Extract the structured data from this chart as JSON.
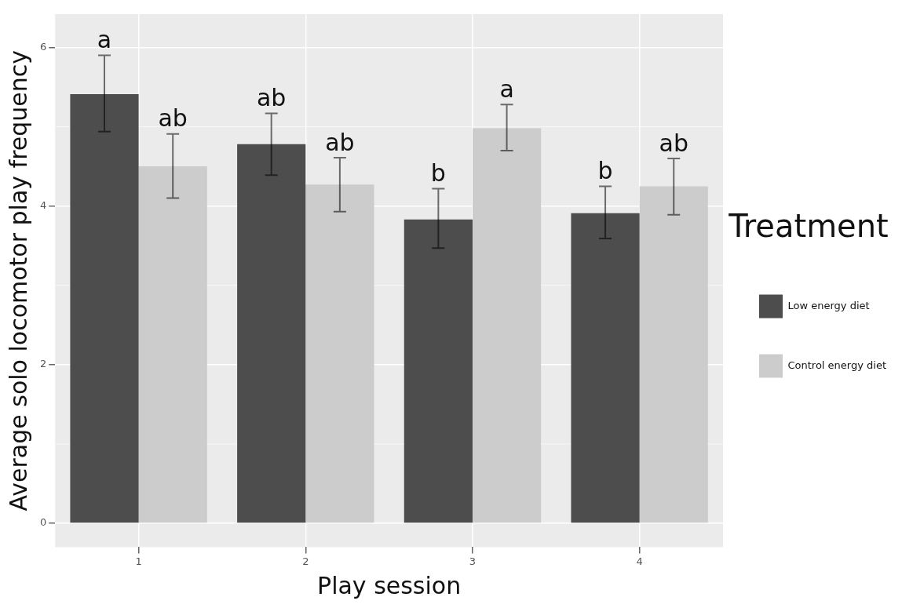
{
  "chart_data": {
    "type": "bar",
    "xlabel": "Play session",
    "ylabel": "Average solo locomotor play frequency",
    "legend_title": "Treatment",
    "categories": [
      "1",
      "2",
      "3",
      "4"
    ],
    "series": [
      {
        "name": "Low energy diet",
        "color": "#4d4d4d",
        "values": [
          5.41,
          4.78,
          3.83,
          3.91
        ],
        "errors": [
          [
            4.94,
            5.9
          ],
          [
            4.39,
            5.17
          ],
          [
            3.47,
            4.22
          ],
          [
            3.59,
            4.25
          ]
        ]
      },
      {
        "name": "Control energy diet",
        "color": "#cccccc",
        "values": [
          4.5,
          4.27,
          4.98,
          4.25
        ],
        "errors": [
          [
            4.1,
            4.91
          ],
          [
            3.93,
            4.61
          ],
          [
            4.7,
            5.28
          ],
          [
            3.89,
            4.6
          ]
        ]
      }
    ],
    "ylim": [
      -0.3,
      6.42
    ],
    "yticks": [
      0,
      2,
      4,
      6
    ],
    "grid": true,
    "legend": "right",
    "annotations": [
      "a",
      "ab",
      "ab",
      "ab",
      "b",
      "a",
      "b",
      "ab"
    ]
  }
}
